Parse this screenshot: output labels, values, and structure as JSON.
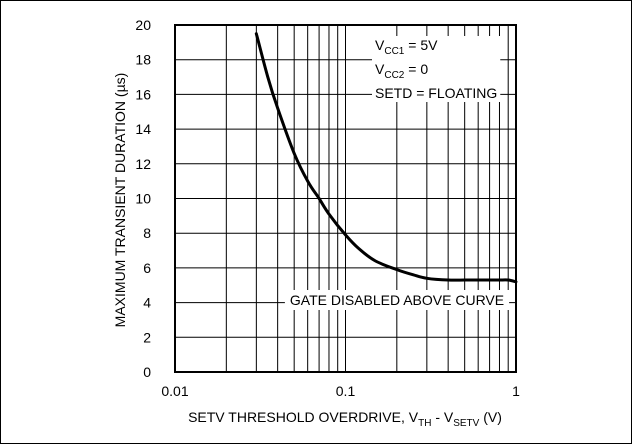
{
  "chart_data": {
    "type": "line",
    "x_scale": "log",
    "xlim": [
      0.01,
      1
    ],
    "ylim": [
      0,
      20
    ],
    "grid": true,
    "x_ticks": [
      "0.01",
      "0.1",
      "1"
    ],
    "y_ticks": [
      "0",
      "2",
      "4",
      "6",
      "8",
      "10",
      "12",
      "14",
      "16",
      "18",
      "20"
    ],
    "xlabel": {
      "pre": "SETV THRESHOLD OVERDRIVE, V",
      "sub1": "TH",
      "mid": " - V",
      "sub2": "SETV",
      "post": " (V)"
    },
    "ylabel": "MAXIMUM TRANSIENT DURATION (µs)",
    "conditions": [
      {
        "main": "V",
        "sub": "CC1",
        "rest": " = 5V"
      },
      {
        "main": "V",
        "sub": "CC2",
        "rest": " = 0"
      },
      {
        "main": "SETD = FLOATING",
        "sub": "",
        "rest": ""
      }
    ],
    "annotation": "GATE DISABLED ABOVE CURVE",
    "series": [
      {
        "x": [
          0.03,
          0.035,
          0.04,
          0.05,
          0.06,
          0.07,
          0.08,
          0.1,
          0.12,
          0.15,
          0.2,
          0.25,
          0.3,
          0.4,
          0.5,
          0.6,
          0.7,
          0.8,
          0.9,
          1.0
        ],
        "y": [
          19.5,
          17.0,
          15.2,
          12.6,
          11.0,
          10.0,
          9.1,
          7.9,
          7.1,
          6.4,
          5.9,
          5.6,
          5.4,
          5.3,
          5.3,
          5.3,
          5.3,
          5.3,
          5.3,
          5.2
        ]
      }
    ]
  }
}
